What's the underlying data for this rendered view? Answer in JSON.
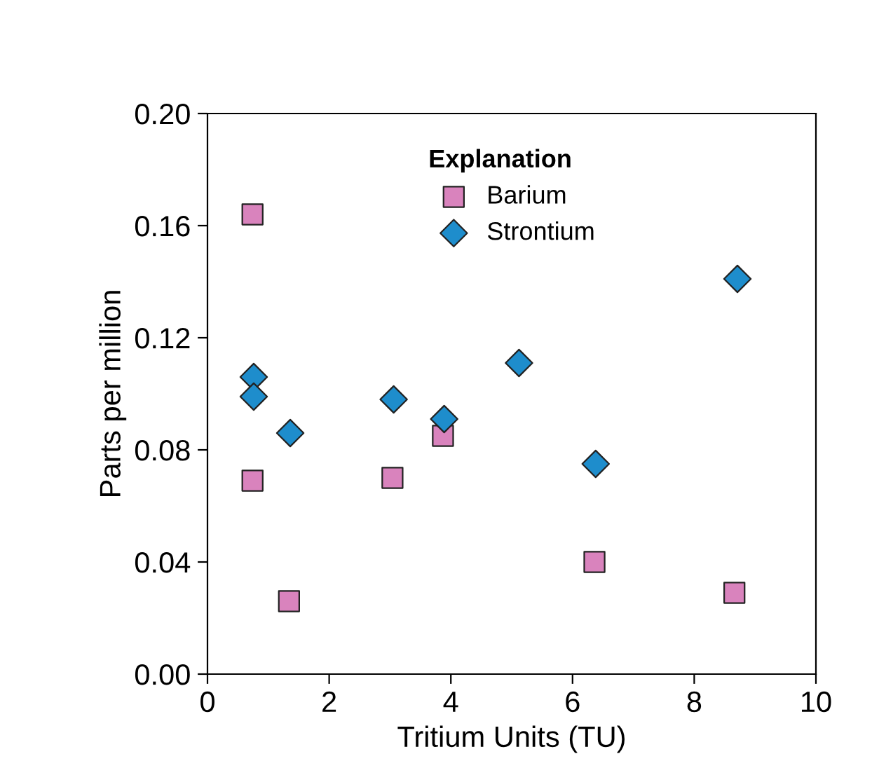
{
  "chart_data": {
    "type": "scatter",
    "xlabel": "Tritium Units (TU)",
    "ylabel": "Parts per million",
    "legend_title": "Explanation",
    "legend": "top",
    "xlim": [
      0,
      10
    ],
    "xticks": [
      0,
      2,
      4,
      6,
      8,
      10
    ],
    "ylim": [
      0,
      0.2
    ],
    "yticks": [
      {
        "value": 0,
        "label": "0.00"
      },
      {
        "value": 0.04,
        "label": "0.04"
      },
      {
        "value": 0.08,
        "label": "0.08"
      },
      {
        "value": 0.12,
        "label": "0.12"
      },
      {
        "value": 0.16,
        "label": "0.16"
      },
      {
        "value": 0.2,
        "label": "0.20"
      }
    ],
    "grid": false,
    "series": [
      {
        "name": "Barium",
        "color": "#d983bd",
        "marker": "square",
        "x": [
          0.74,
          0.74,
          1.34,
          3.04,
          3.87,
          6.36,
          8.66
        ],
        "values": [
          0.164,
          0.069,
          0.026,
          0.07,
          0.085,
          0.04,
          0.029
        ]
      },
      {
        "name": "Strontium",
        "color": "#1e8dcc",
        "marker": "diamond",
        "x": [
          0.76,
          0.76,
          1.36,
          3.06,
          3.89,
          5.12,
          6.38,
          8.71
        ],
        "values": [
          0.106,
          0.099,
          0.086,
          0.098,
          0.091,
          0.111,
          0.075,
          0.141
        ]
      }
    ]
  }
}
